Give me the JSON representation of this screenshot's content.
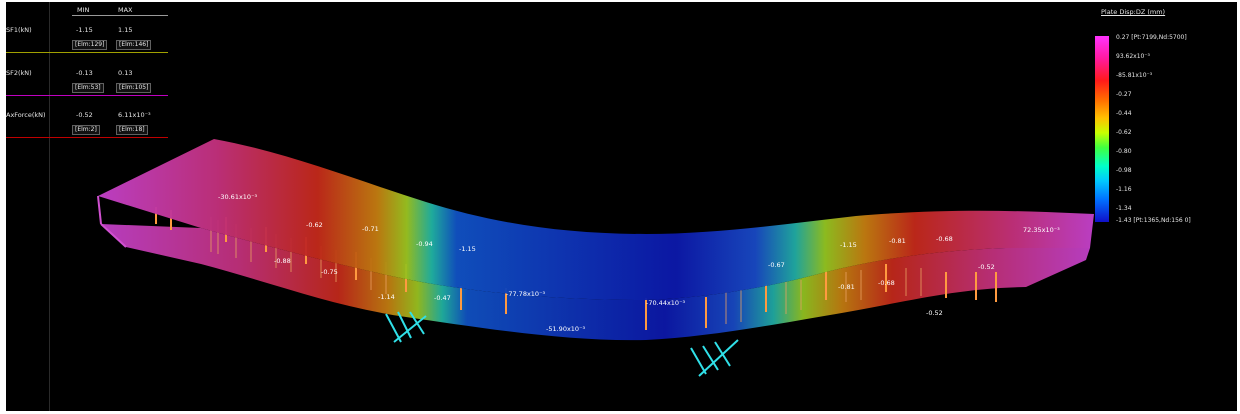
{
  "table": {
    "col_min": "MIN",
    "col_max": "MAX",
    "rows": [
      {
        "name": "SF1(kN)",
        "min": "-1.15",
        "max": "1.15",
        "min_elem": "[Elm:129]",
        "max_elem": "[Elm:146]",
        "color": "#a0a000"
      },
      {
        "name": "SF2(kN)",
        "min": "-0.13",
        "max": "0.13",
        "min_elem": "[Elm:53]",
        "max_elem": "[Elm:105]",
        "color": "#c000c0"
      },
      {
        "name": "AxForce(kN)",
        "min": "-0.52",
        "max": "6.11x10⁻³",
        "min_elem": "[Elm:2]",
        "max_elem": "[Elm:18]",
        "color": "#c00000"
      }
    ]
  },
  "legend": {
    "title": "Plate Disp:DZ  (mm)",
    "top_value": "0.27 [Pt:7199,Nd:5700]",
    "values": [
      "93.62x10⁻³",
      "-85.81x10⁻³",
      "-0.27",
      "-0.44",
      "-0.62",
      "-0.80",
      "-0.98",
      "-1.16",
      "-1.34"
    ],
    "bottom_value": "-1.43 [Pt:1365,Nd:156 0]",
    "colors": [
      "#ff33ff",
      "#ff1aa0",
      "#ff1a1a",
      "#ff6a00",
      "#ffc000",
      "#c8ff00",
      "#40ff40",
      "#00ffc8",
      "#00c8ff",
      "#0070ff",
      "#1010c8"
    ]
  },
  "model_labels": [
    {
      "id": "a",
      "text": "-30.61x10⁻³"
    },
    {
      "id": "b",
      "text": "-0.62"
    },
    {
      "id": "c",
      "text": "-0.71"
    },
    {
      "id": "d",
      "text": "-0.94"
    },
    {
      "id": "e",
      "text": "-1.15"
    },
    {
      "id": "f",
      "text": "-0.88"
    },
    {
      "id": "g",
      "text": "-0.75"
    },
    {
      "id": "h",
      "text": "-1.14"
    },
    {
      "id": "i",
      "text": "-0.47"
    },
    {
      "id": "j",
      "text": "-77.78x10⁻³"
    },
    {
      "id": "k",
      "text": "-51.90x10⁻³"
    },
    {
      "id": "l",
      "text": "-70.44x10⁻³"
    },
    {
      "id": "m",
      "text": "-0.67"
    },
    {
      "id": "n",
      "text": "-1.15"
    },
    {
      "id": "o",
      "text": "-0.81"
    },
    {
      "id": "p",
      "text": "-0.68"
    },
    {
      "id": "q",
      "text": "72.35x10⁻³"
    },
    {
      "id": "r",
      "text": "-0.52"
    },
    {
      "id": "s",
      "text": "-0.81"
    },
    {
      "id": "t",
      "text": "-0.68"
    },
    {
      "id": "u",
      "text": "-0.52"
    }
  ]
}
